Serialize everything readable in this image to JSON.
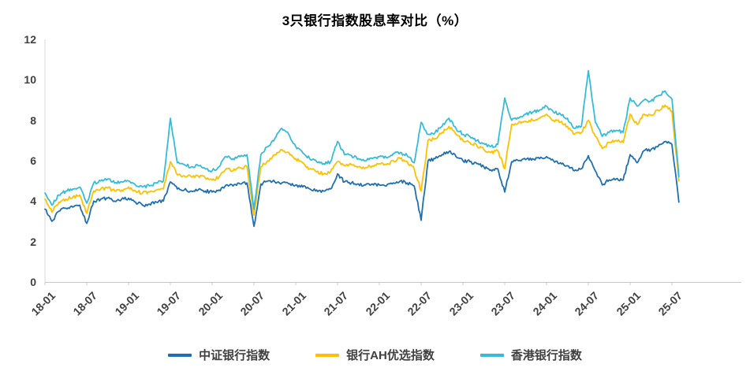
{
  "chart_data": {
    "type": "line",
    "title": "3只银行指数股息率对比（%）",
    "xlabel": "",
    "ylabel": "",
    "ylim": [
      0,
      12
    ],
    "y_ticks": [
      0,
      2,
      4,
      6,
      8,
      10,
      12
    ],
    "grid": false,
    "legend_position": "bottom",
    "x_unit": "months since 2018-01, one value per month",
    "x_tick_labels": [
      "18-01",
      "18-07",
      "19-01",
      "19-07",
      "20-01",
      "20-07",
      "21-01",
      "21-07",
      "22-01",
      "22-07",
      "23-01",
      "23-07",
      "24-01",
      "24-07",
      "25-01",
      "25-07"
    ],
    "x_tick_months": [
      0,
      6,
      12,
      18,
      24,
      30,
      36,
      42,
      48,
      54,
      60,
      66,
      72,
      78,
      84,
      90
    ],
    "series": [
      {
        "id": "csi-bank-index",
        "name": "中证银行指数",
        "color": "#1f6fb2",
        "monthly_values": [
          3.6,
          3.0,
          3.5,
          3.65,
          3.7,
          3.8,
          2.9,
          4.0,
          4.1,
          4.15,
          4.0,
          4.1,
          4.15,
          3.95,
          3.8,
          3.85,
          3.95,
          4.0,
          4.95,
          4.6,
          4.55,
          4.5,
          4.55,
          4.5,
          4.45,
          4.55,
          4.8,
          4.75,
          4.85,
          4.9,
          2.75,
          4.85,
          5.0,
          4.95,
          4.9,
          4.85,
          4.8,
          4.7,
          4.6,
          4.55,
          4.5,
          4.6,
          5.35,
          4.95,
          4.9,
          4.85,
          4.8,
          4.85,
          4.8,
          4.75,
          4.9,
          5.0,
          4.9,
          4.75,
          3.05,
          6.0,
          6.1,
          6.3,
          6.45,
          6.2,
          6.0,
          5.95,
          5.85,
          5.7,
          5.55,
          5.6,
          4.45,
          5.95,
          6.0,
          6.05,
          6.1,
          6.1,
          6.2,
          6.0,
          5.9,
          5.75,
          5.5,
          5.6,
          6.25,
          5.5,
          4.8,
          5.05,
          5.1,
          5.05,
          6.3,
          5.9,
          6.5,
          6.55,
          6.7,
          6.95,
          6.8,
          3.95
        ]
      },
      {
        "id": "bank-ah-select-index",
        "name": "银行AH优选指数",
        "color": "#ffc000",
        "monthly_values": [
          4.1,
          3.45,
          3.95,
          4.1,
          4.2,
          4.3,
          3.4,
          4.5,
          4.6,
          4.65,
          4.5,
          4.55,
          4.7,
          4.5,
          4.4,
          4.45,
          4.55,
          4.6,
          5.95,
          5.3,
          5.25,
          5.2,
          5.25,
          5.15,
          5.05,
          5.2,
          5.6,
          5.5,
          5.65,
          5.7,
          3.3,
          5.7,
          6.0,
          6.3,
          6.55,
          6.4,
          6.1,
          5.9,
          5.6,
          5.45,
          5.35,
          5.45,
          5.95,
          5.75,
          5.8,
          5.7,
          5.65,
          5.75,
          5.85,
          5.8,
          6.0,
          6.1,
          5.95,
          5.6,
          4.5,
          7.0,
          7.1,
          7.4,
          7.7,
          7.3,
          7.0,
          6.9,
          6.75,
          6.55,
          6.4,
          6.5,
          5.6,
          7.8,
          7.9,
          7.95,
          8.0,
          8.1,
          8.3,
          8.0,
          7.9,
          7.7,
          7.3,
          7.4,
          8.0,
          7.2,
          6.6,
          6.9,
          7.0,
          6.9,
          8.3,
          7.8,
          8.3,
          8.25,
          8.5,
          8.75,
          8.45,
          5.0
        ]
      },
      {
        "id": "hk-bank-index",
        "name": "香港银行指数",
        "color": "#35bcdc",
        "monthly_values": [
          4.4,
          3.8,
          4.3,
          4.5,
          4.6,
          4.7,
          3.9,
          4.9,
          5.0,
          5.1,
          4.9,
          4.95,
          5.0,
          4.8,
          4.7,
          4.75,
          4.9,
          5.0,
          8.1,
          5.9,
          5.8,
          5.7,
          5.75,
          5.6,
          5.5,
          5.7,
          6.2,
          6.1,
          6.2,
          6.3,
          3.6,
          6.3,
          6.7,
          7.1,
          7.6,
          7.3,
          6.7,
          6.4,
          6.1,
          5.95,
          5.85,
          5.95,
          6.95,
          6.3,
          6.25,
          6.1,
          6.0,
          6.1,
          6.2,
          6.15,
          6.35,
          6.4,
          6.25,
          5.9,
          7.9,
          7.3,
          7.4,
          7.7,
          8.1,
          7.6,
          7.3,
          7.2,
          7.0,
          6.85,
          6.7,
          6.8,
          9.1,
          8.0,
          8.1,
          8.3,
          8.4,
          8.5,
          8.7,
          8.4,
          8.3,
          8.1,
          7.6,
          7.7,
          10.45,
          7.9,
          7.2,
          7.4,
          7.5,
          7.4,
          9.1,
          8.7,
          9.0,
          8.95,
          9.2,
          9.45,
          9.05,
          5.2
        ]
      }
    ]
  },
  "colors": {
    "axis_line": "#c9c9c9",
    "y_axis_line": "#d9d9d9",
    "tick_text": "#404040",
    "title_text": "#000000",
    "background": "#ffffff"
  }
}
